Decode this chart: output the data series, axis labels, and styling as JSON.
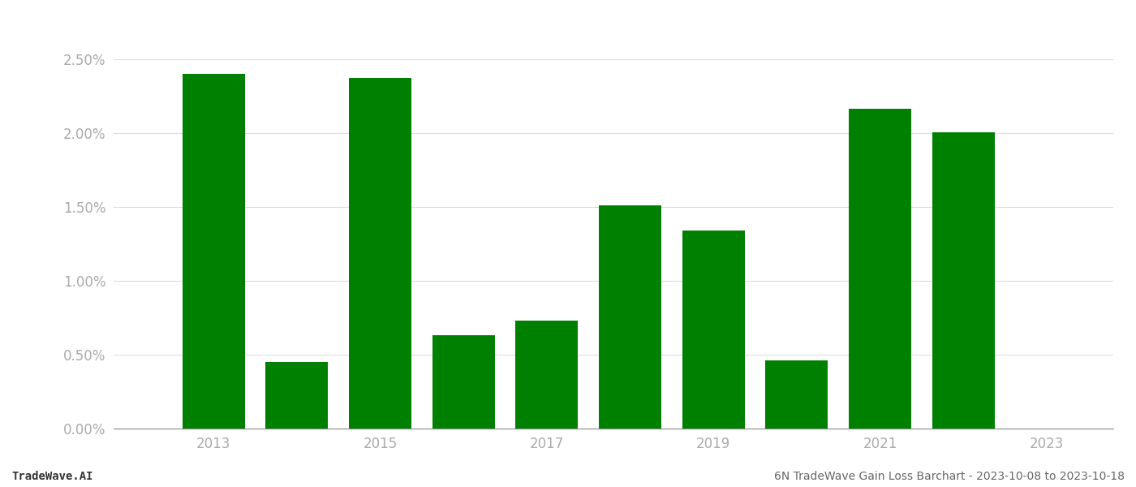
{
  "years": [
    2013,
    2014,
    2015,
    2016,
    2017,
    2018,
    2019,
    2020,
    2021,
    2022
  ],
  "values": [
    0.02401,
    0.00452,
    0.02372,
    0.00632,
    0.00728,
    0.0151,
    0.0134,
    0.00462,
    0.02165,
    0.02002
  ],
  "bar_color": "#008000",
  "background_color": "#ffffff",
  "yticks": [
    0.0,
    0.005,
    0.01,
    0.015,
    0.02,
    0.025
  ],
  "ylim": [
    0,
    0.028
  ],
  "tick_label_color": "#aaaaaa",
  "grid_color": "#dddddd",
  "footer_left": "TradeWave.AI",
  "footer_right": "6N TradeWave Gain Loss Barchart - 2023-10-08 to 2023-10-18",
  "footer_fontsize": 10,
  "bar_width": 0.75,
  "spine_color": "#888888",
  "xtick_positions": [
    2013,
    2015,
    2017,
    2019,
    2021,
    2023
  ],
  "xtick_labels": [
    "2013",
    "2015",
    "2017",
    "2019",
    "2021",
    "2023"
  ],
  "xlim": [
    2011.8,
    2023.8
  ],
  "tick_fontsize": 12
}
